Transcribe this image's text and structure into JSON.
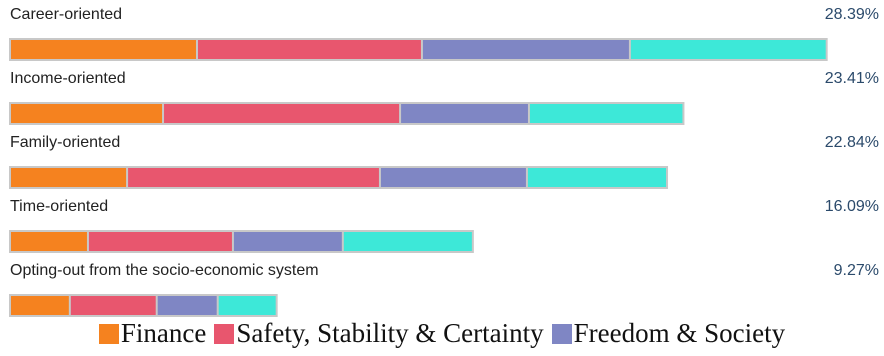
{
  "chart_data": {
    "type": "stacked-bar",
    "categories": [
      "Career-oriented",
      "Income-oriented",
      "Family-oriented",
      "Time-oriented",
      "Opting-out from the socio-economic system"
    ],
    "totals": [
      28.39,
      23.41,
      22.84,
      16.09,
      9.27
    ],
    "total_labels": [
      "28.39%",
      "23.41%",
      "22.84%",
      "16.09%",
      "9.27%"
    ],
    "series": [
      {
        "name": "Finance",
        "color": "#f5821f",
        "values": [
          6.5,
          5.32,
          4.07,
          2.71,
          2.08
        ]
      },
      {
        "name": "Safety, Stability & Certainty",
        "color": "#e8566e",
        "values": [
          7.82,
          8.24,
          8.79,
          5.04,
          3.02
        ]
      },
      {
        "name": "Freedom & Society",
        "color": "#7f86c4",
        "values": [
          7.23,
          4.48,
          5.11,
          3.82,
          2.12
        ]
      },
      {
        "color": "#3de8d8",
        "values": [
          6.84,
          5.37,
          4.87,
          4.52,
          2.05
        ]
      }
    ],
    "xlim": [
      0,
      30
    ]
  }
}
